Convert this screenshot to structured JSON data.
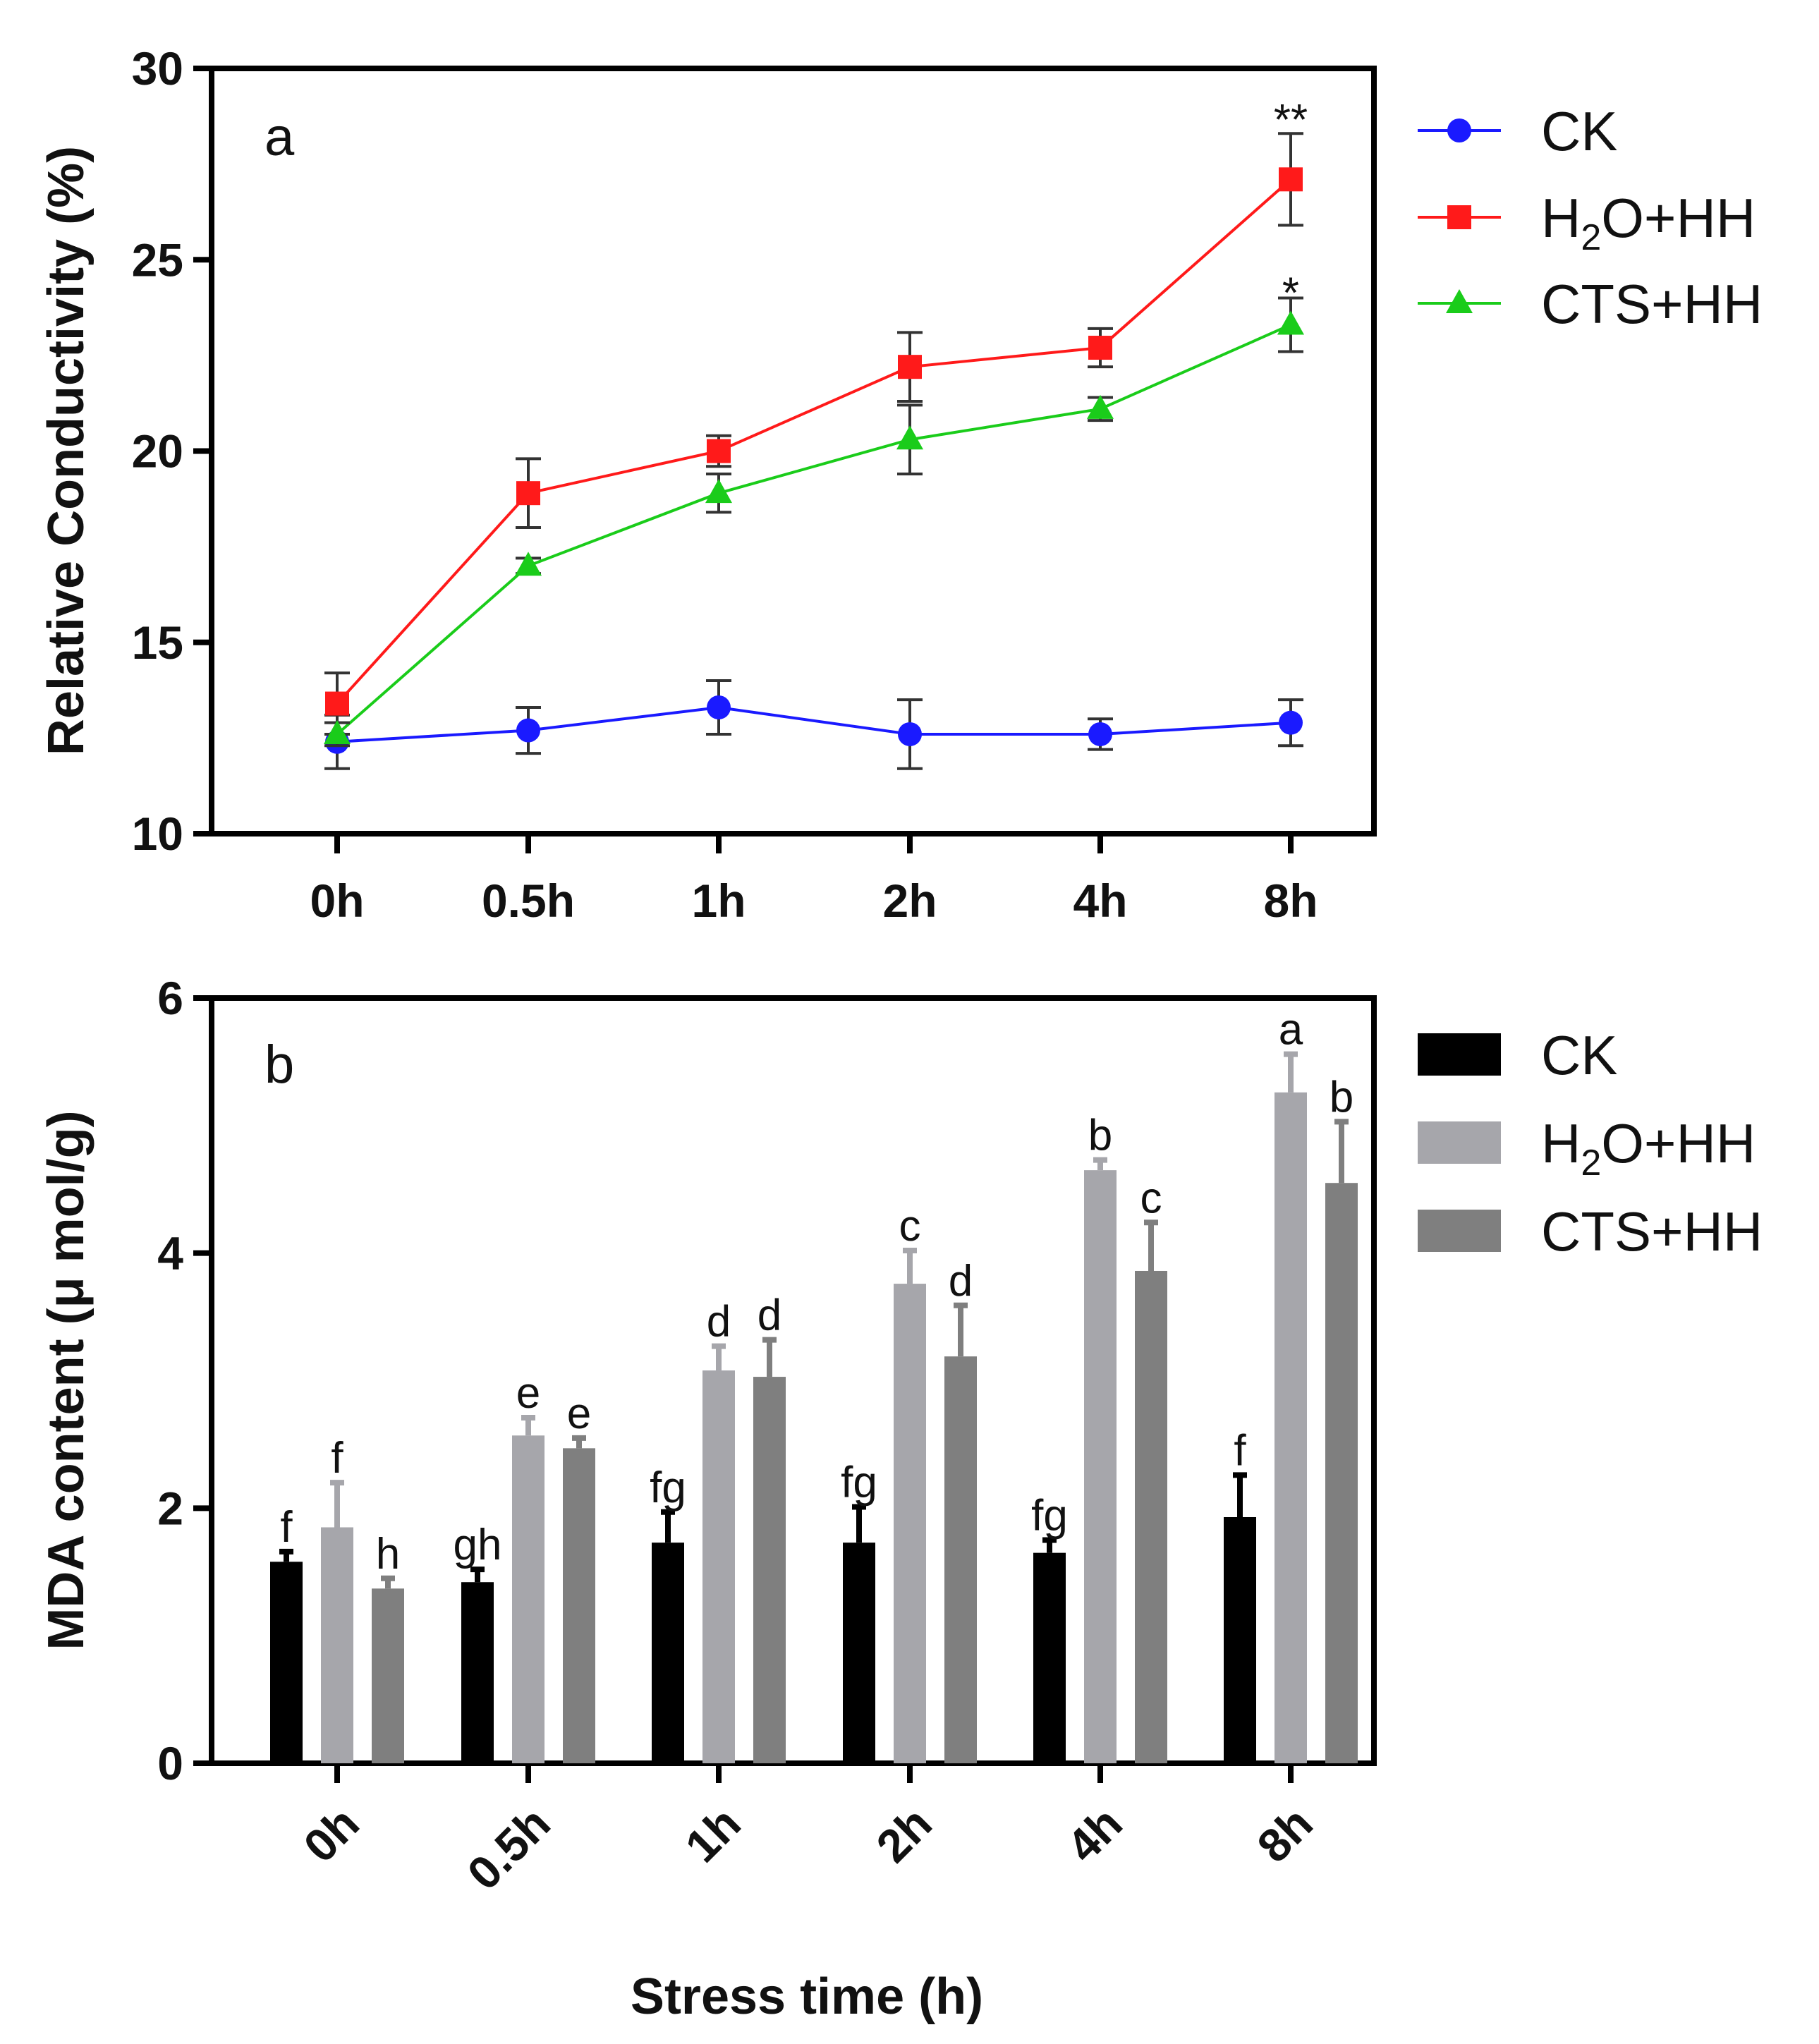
{
  "chart_data": [
    {
      "type": "line",
      "panel_label": "a",
      "ylabel": "Relative Conductivity (%)",
      "xlabel": "",
      "ylim": [
        10,
        30
      ],
      "yticks": [
        10,
        15,
        20,
        25,
        30
      ],
      "categories": [
        "0h",
        "0.5h",
        "1h",
        "2h",
        "4h",
        "8h"
      ],
      "legend_position": "right",
      "series": [
        {
          "name": "CK",
          "color": "#1a1aff",
          "marker": "circle",
          "values": [
            12.4,
            12.7,
            13.3,
            12.6,
            12.6,
            12.9
          ],
          "errors": [
            0.7,
            0.6,
            0.7,
            0.9,
            0.4,
            0.6
          ]
        },
        {
          "name": "H2O+HH",
          "legend_main": "H",
          "legend_sub": "2",
          "legend_rest": "O+HH",
          "color": "#ff1a1a",
          "marker": "square",
          "values": [
            13.4,
            18.9,
            20.0,
            22.2,
            22.7,
            27.1
          ],
          "errors": [
            0.8,
            0.9,
            0.4,
            0.9,
            0.5,
            1.2
          ]
        },
        {
          "name": "CTS+HH",
          "color": "#1acc1a",
          "marker": "triangle",
          "values": [
            12.6,
            17.0,
            18.9,
            20.3,
            21.1,
            23.3
          ],
          "errors": [
            0.3,
            0.2,
            0.5,
            0.9,
            0.3,
            0.7
          ]
        }
      ],
      "annotations": [
        {
          "category": "8h",
          "series": "H2O+HH",
          "text": "**"
        },
        {
          "category": "8h",
          "series": "CTS+HH",
          "text": "*"
        }
      ]
    },
    {
      "type": "bar",
      "panel_label": "b",
      "ylabel": "MDA content (μ mol/g)",
      "xlabel": "Stress time (h)",
      "ylim": [
        0,
        6
      ],
      "yticks": [
        0,
        2,
        4,
        6
      ],
      "categories": [
        "0h",
        "0.5h",
        "1h",
        "2h",
        "4h",
        "8h"
      ],
      "legend_position": "right",
      "series": [
        {
          "name": "CK",
          "color": "#000000",
          "values": [
            1.58,
            1.42,
            1.73,
            1.73,
            1.65,
            1.93
          ],
          "errors": [
            0.08,
            0.1,
            0.24,
            0.28,
            0.1,
            0.33
          ],
          "letters": [
            "f",
            "gh",
            "fg",
            "fg",
            "fg",
            "f"
          ]
        },
        {
          "name": "H2O+HH",
          "legend_main": "H",
          "legend_sub": "2",
          "legend_rest": "O+HH",
          "color": "#a6a6ab",
          "values": [
            1.85,
            2.57,
            3.08,
            3.76,
            4.65,
            5.26
          ],
          "errors": [
            0.35,
            0.14,
            0.19,
            0.26,
            0.08,
            0.3
          ],
          "letters": [
            "f",
            "e",
            "d",
            "c",
            "b",
            "a"
          ]
        },
        {
          "name": "CTS+HH",
          "color": "#7f7f7f",
          "values": [
            1.37,
            2.47,
            3.03,
            3.19,
            3.86,
            4.55
          ],
          "errors": [
            0.08,
            0.08,
            0.29,
            0.4,
            0.38,
            0.48
          ],
          "letters": [
            "h",
            "e",
            "d",
            "d",
            "c",
            "b"
          ]
        }
      ]
    }
  ]
}
